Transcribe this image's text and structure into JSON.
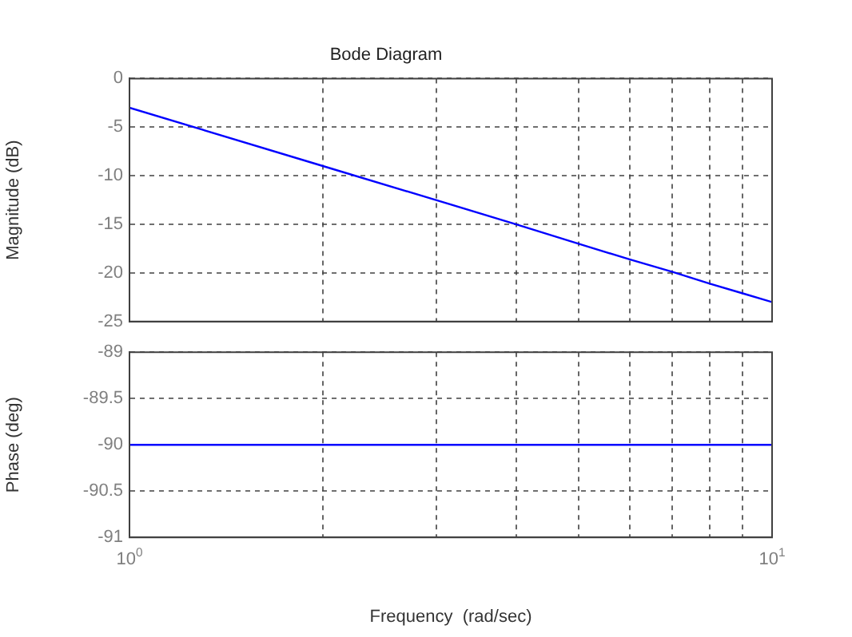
{
  "chart_data": [
    {
      "type": "line",
      "title": "Bode Diagram",
      "ylabel": "Magnitude (dB)",
      "x": [
        1,
        2,
        3,
        4,
        5,
        6,
        7,
        8,
        9,
        10
      ],
      "series": [
        {
          "color": "#0000ff",
          "values": [
            -3,
            -9,
            -12.5,
            -15,
            -17,
            -18.6,
            -19.9,
            -21.1,
            -22.1,
            -23
          ]
        }
      ],
      "log": "x",
      "xlim": [
        1,
        10
      ],
      "xticks": [
        {
          "value": 1,
          "label": null
        },
        {
          "value": 2,
          "label": null
        },
        {
          "value": 3,
          "label": null
        },
        {
          "value": 4,
          "label": null
        },
        {
          "value": 5,
          "label": null
        },
        {
          "value": 6,
          "label": null
        },
        {
          "value": 7,
          "label": null
        },
        {
          "value": 8,
          "label": null
        },
        {
          "value": 9,
          "label": null
        },
        {
          "value": 10,
          "label": null
        }
      ],
      "ylim": [
        -25,
        0
      ],
      "yticks": [
        -25,
        -20,
        -15,
        -10,
        -5,
        0
      ],
      "grid": true,
      "tick_labels": "y"
    },
    {
      "type": "line",
      "xlabel": "Frequency  (rad/sec)",
      "ylabel": "Phase (deg)",
      "x": [
        1,
        10
      ],
      "series": [
        {
          "color": "#0000ff",
          "values": [
            -90,
            -90
          ]
        }
      ],
      "log": "x",
      "xlim": [
        1,
        10
      ],
      "xticks": [
        {
          "value": 1,
          "label": "10$^{0}$"
        },
        {
          "value": 2,
          "label": null
        },
        {
          "value": 3,
          "label": null
        },
        {
          "value": 4,
          "label": null
        },
        {
          "value": 5,
          "label": null
        },
        {
          "value": 6,
          "label": null
        },
        {
          "value": 7,
          "label": null
        },
        {
          "value": 8,
          "label": null
        },
        {
          "value": 9,
          "label": null
        },
        {
          "value": 10,
          "label": "10$^{1}$"
        }
      ],
      "ylim": [
        -91,
        -89
      ],
      "yticks": [
        -91,
        -90.5,
        -90,
        -89.5,
        -89
      ],
      "grid": true
    }
  ]
}
